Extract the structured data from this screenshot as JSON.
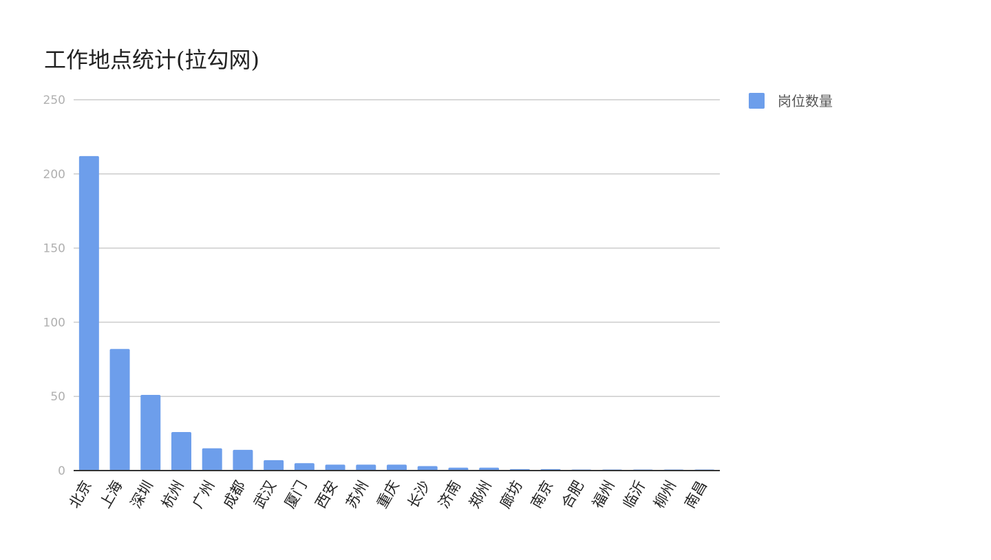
{
  "chart_data": {
    "type": "bar",
    "title": "工作地点统计(拉勾网)",
    "xlabel": "",
    "ylabel": "",
    "ylim": [
      0,
      250
    ],
    "yticks": [
      0,
      50,
      100,
      150,
      200,
      250
    ],
    "grid": true,
    "legend_position": "top-right",
    "categories": [
      "北京",
      "上海",
      "深圳",
      "杭州",
      "广州",
      "成都",
      "武汉",
      "厦门",
      "西安",
      "苏州",
      "重庆",
      "长沙",
      "济南",
      "郑州",
      "廊坊",
      "南京",
      "合肥",
      "福州",
      "临沂",
      "柳州",
      "南昌"
    ],
    "series": [
      {
        "name": "岗位数量",
        "color": "#6d9eeb",
        "values": [
          212,
          82,
          51,
          26,
          15,
          14,
          7,
          5,
          4,
          4,
          4,
          3,
          2,
          2,
          1,
          1,
          0,
          0,
          0,
          0,
          0
        ]
      }
    ]
  }
}
